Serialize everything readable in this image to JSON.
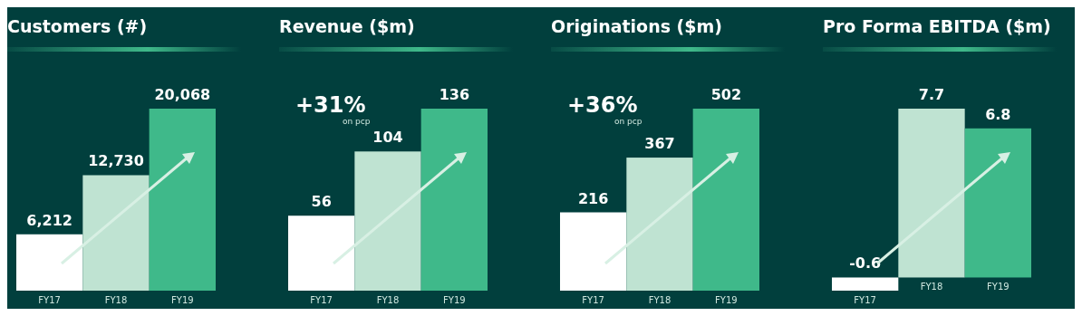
{
  "chart_data": [
    {
      "type": "bar",
      "title": "Customers (#)",
      "categories": [
        "FY17",
        "FY18",
        "FY19"
      ],
      "values": [
        6212,
        12730,
        20068
      ],
      "colors": [
        "#ffffff",
        "#bfe3d2",
        "#3fb98a"
      ],
      "data_labels": true,
      "value_labels": [
        "6,212",
        "12,730",
        "20,068"
      ]
    },
    {
      "type": "bar",
      "title": "Revenue ($m)",
      "categories": [
        "FY17",
        "FY18",
        "FY19"
      ],
      "values": [
        56,
        104,
        136
      ],
      "colors": [
        "#ffffff",
        "#bfe3d2",
        "#3fb98a"
      ],
      "data_labels": true,
      "annotations": [
        "+31%",
        "on pcp"
      ]
    },
    {
      "type": "bar",
      "title": "Originations ($m)",
      "categories": [
        "FY17",
        "FY18",
        "FY19"
      ],
      "values": [
        216,
        367,
        502
      ],
      "colors": [
        "#ffffff",
        "#bfe3d2",
        "#3fb98a"
      ],
      "data_labels": true,
      "annotations": [
        "+36%",
        "on pcp"
      ]
    },
    {
      "type": "bar",
      "title": "Pro Forma EBITDA ($m)",
      "categories": [
        "FY17",
        "FY18",
        "FY19"
      ],
      "values": [
        -0.6,
        7.7,
        6.8
      ],
      "colors": [
        "#ffffff",
        "#bfe3d2",
        "#3fb98a"
      ],
      "data_labels": true
    }
  ]
}
